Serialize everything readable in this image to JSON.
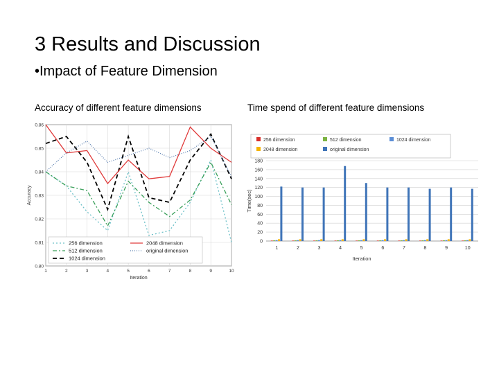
{
  "slide": {
    "title": "3 Results and Discussion",
    "bullet": "•Impact of Feature Dimension",
    "caption_left": "Accuracy of different feature dimensions",
    "caption_right": "Time spend of different feature dimensions"
  },
  "chart_data": [
    {
      "type": "line",
      "xlabel": "Iteration",
      "ylabel": "Accuracy",
      "x": [
        1,
        2,
        3,
        4,
        5,
        6,
        7,
        8,
        9,
        10
      ],
      "xlim": [
        1,
        10
      ],
      "ylim": [
        0.8,
        0.86
      ],
      "yticks": [
        "0.80",
        "0.81",
        "0.82",
        "0.83",
        "0.84",
        "0.85",
        "0.86"
      ],
      "grid": true,
      "legend_position": "bottom-left",
      "series": [
        {
          "name": "256 dimension",
          "color": "#6cc0c8",
          "dash": "2 3",
          "values": [
            0.84,
            0.834,
            0.823,
            0.815,
            0.84,
            0.813,
            0.815,
            0.827,
            0.845,
            0.81
          ]
        },
        {
          "name": "512 dimension",
          "color": "#3aa05a",
          "dash": "6 3 2 3",
          "values": [
            0.84,
            0.834,
            0.832,
            0.817,
            0.836,
            0.827,
            0.821,
            0.828,
            0.844,
            0.826
          ]
        },
        {
          "name": "1024 dimension",
          "color": "#000000",
          "dash": "6 4",
          "values": [
            0.852,
            0.855,
            0.844,
            0.824,
            0.855,
            0.829,
            0.827,
            0.845,
            0.856,
            0.837
          ]
        },
        {
          "name": "2048 dimension",
          "color": "#e03a3a",
          "dash": "",
          "values": [
            0.86,
            0.848,
            0.849,
            0.835,
            0.845,
            0.837,
            0.838,
            0.859,
            0.85,
            0.844
          ]
        },
        {
          "name": "original dimension",
          "color": "#5a7fb0",
          "dash": "1 2",
          "values": [
            0.84,
            0.848,
            0.853,
            0.844,
            0.847,
            0.85,
            0.846,
            0.849,
            0.855,
            0.838
          ]
        }
      ]
    },
    {
      "type": "bar",
      "xlabel": "Iteration",
      "ylabel": "Time(sec)",
      "categories": [
        "1",
        "2",
        "3",
        "4",
        "5",
        "6",
        "7",
        "8",
        "9",
        "10"
      ],
      "ylim": [
        0,
        180
      ],
      "yticks": [
        "0",
        "20",
        "40",
        "60",
        "80",
        "100",
        "120",
        "140",
        "160",
        "180"
      ],
      "grid": true,
      "legend_position": "top",
      "series": [
        {
          "name": "256 dimension",
          "color": "#d9302a",
          "values": [
            1,
            1,
            1,
            1,
            1,
            1,
            1,
            1,
            1,
            1
          ]
        },
        {
          "name": "512 dimension",
          "color": "#7cb342",
          "values": [
            1.5,
            1.5,
            1.5,
            1.5,
            1.5,
            1.5,
            1.5,
            1.5,
            1.5,
            1.5
          ]
        },
        {
          "name": "1024 dimension",
          "color": "#5b8ed6",
          "values": [
            2,
            2,
            2,
            2,
            2,
            2,
            2,
            2,
            2,
            2
          ]
        },
        {
          "name": "2048 dimension",
          "color": "#f5b400",
          "values": [
            4,
            4,
            4,
            4,
            4,
            4,
            4,
            4,
            4,
            4
          ]
        },
        {
          "name": "original dimension",
          "color": "#3f74b8",
          "values": [
            122,
            120,
            120,
            168,
            130,
            120,
            120,
            117,
            120,
            117
          ]
        }
      ]
    }
  ]
}
